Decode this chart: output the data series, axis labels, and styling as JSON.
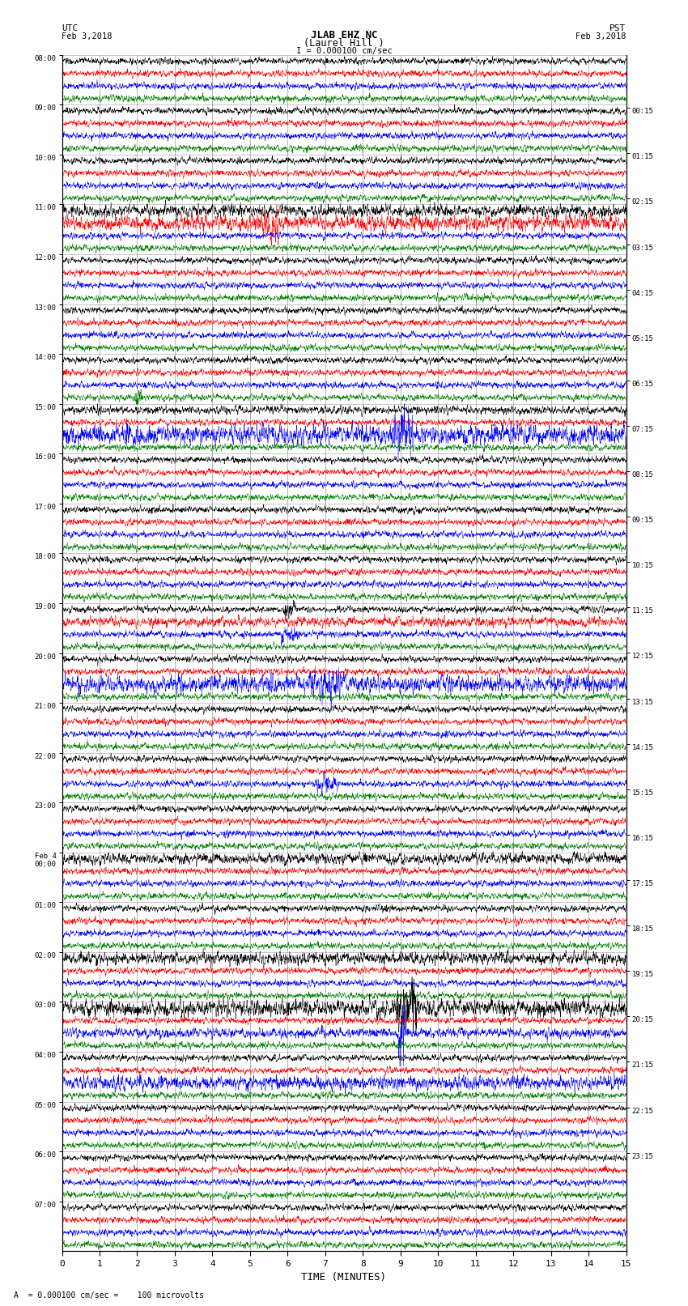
{
  "title_line1": "JLAB EHZ NC",
  "title_line2": "(Laurel Hill )",
  "scale_text": "I = 0.000100 cm/sec",
  "left_label": "UTC",
  "left_date": "Feb 3,2018",
  "right_label": "PST",
  "right_date": "Feb 3,2018",
  "xlabel": "TIME (MINUTES)",
  "bottom_note": "A  = 0.000100 cm/sec =    100 microvolts",
  "trace_colors": [
    "black",
    "red",
    "blue",
    "green"
  ],
  "xlim": [
    0,
    15
  ],
  "num_groups": 24,
  "traces_per_group": 4,
  "left_times": [
    "08:00",
    "09:00",
    "10:00",
    "11:00",
    "12:00",
    "13:00",
    "14:00",
    "15:00",
    "16:00",
    "17:00",
    "18:00",
    "19:00",
    "20:00",
    "21:00",
    "22:00",
    "23:00",
    "Feb 4\n00:00",
    "01:00",
    "02:00",
    "03:00",
    "04:00",
    "05:00",
    "06:00",
    "07:00"
  ],
  "right_times": [
    "00:15",
    "01:15",
    "02:15",
    "03:15",
    "04:15",
    "05:15",
    "06:15",
    "07:15",
    "08:15",
    "09:15",
    "10:15",
    "11:15",
    "12:15",
    "13:15",
    "14:15",
    "15:15",
    "16:15",
    "17:15",
    "18:15",
    "19:15",
    "20:15",
    "21:15",
    "22:15",
    "23:15"
  ],
  "bg_color": "white",
  "grid_color": "#999999",
  "noise_amplitude": 0.12,
  "noise_samples": 2700
}
